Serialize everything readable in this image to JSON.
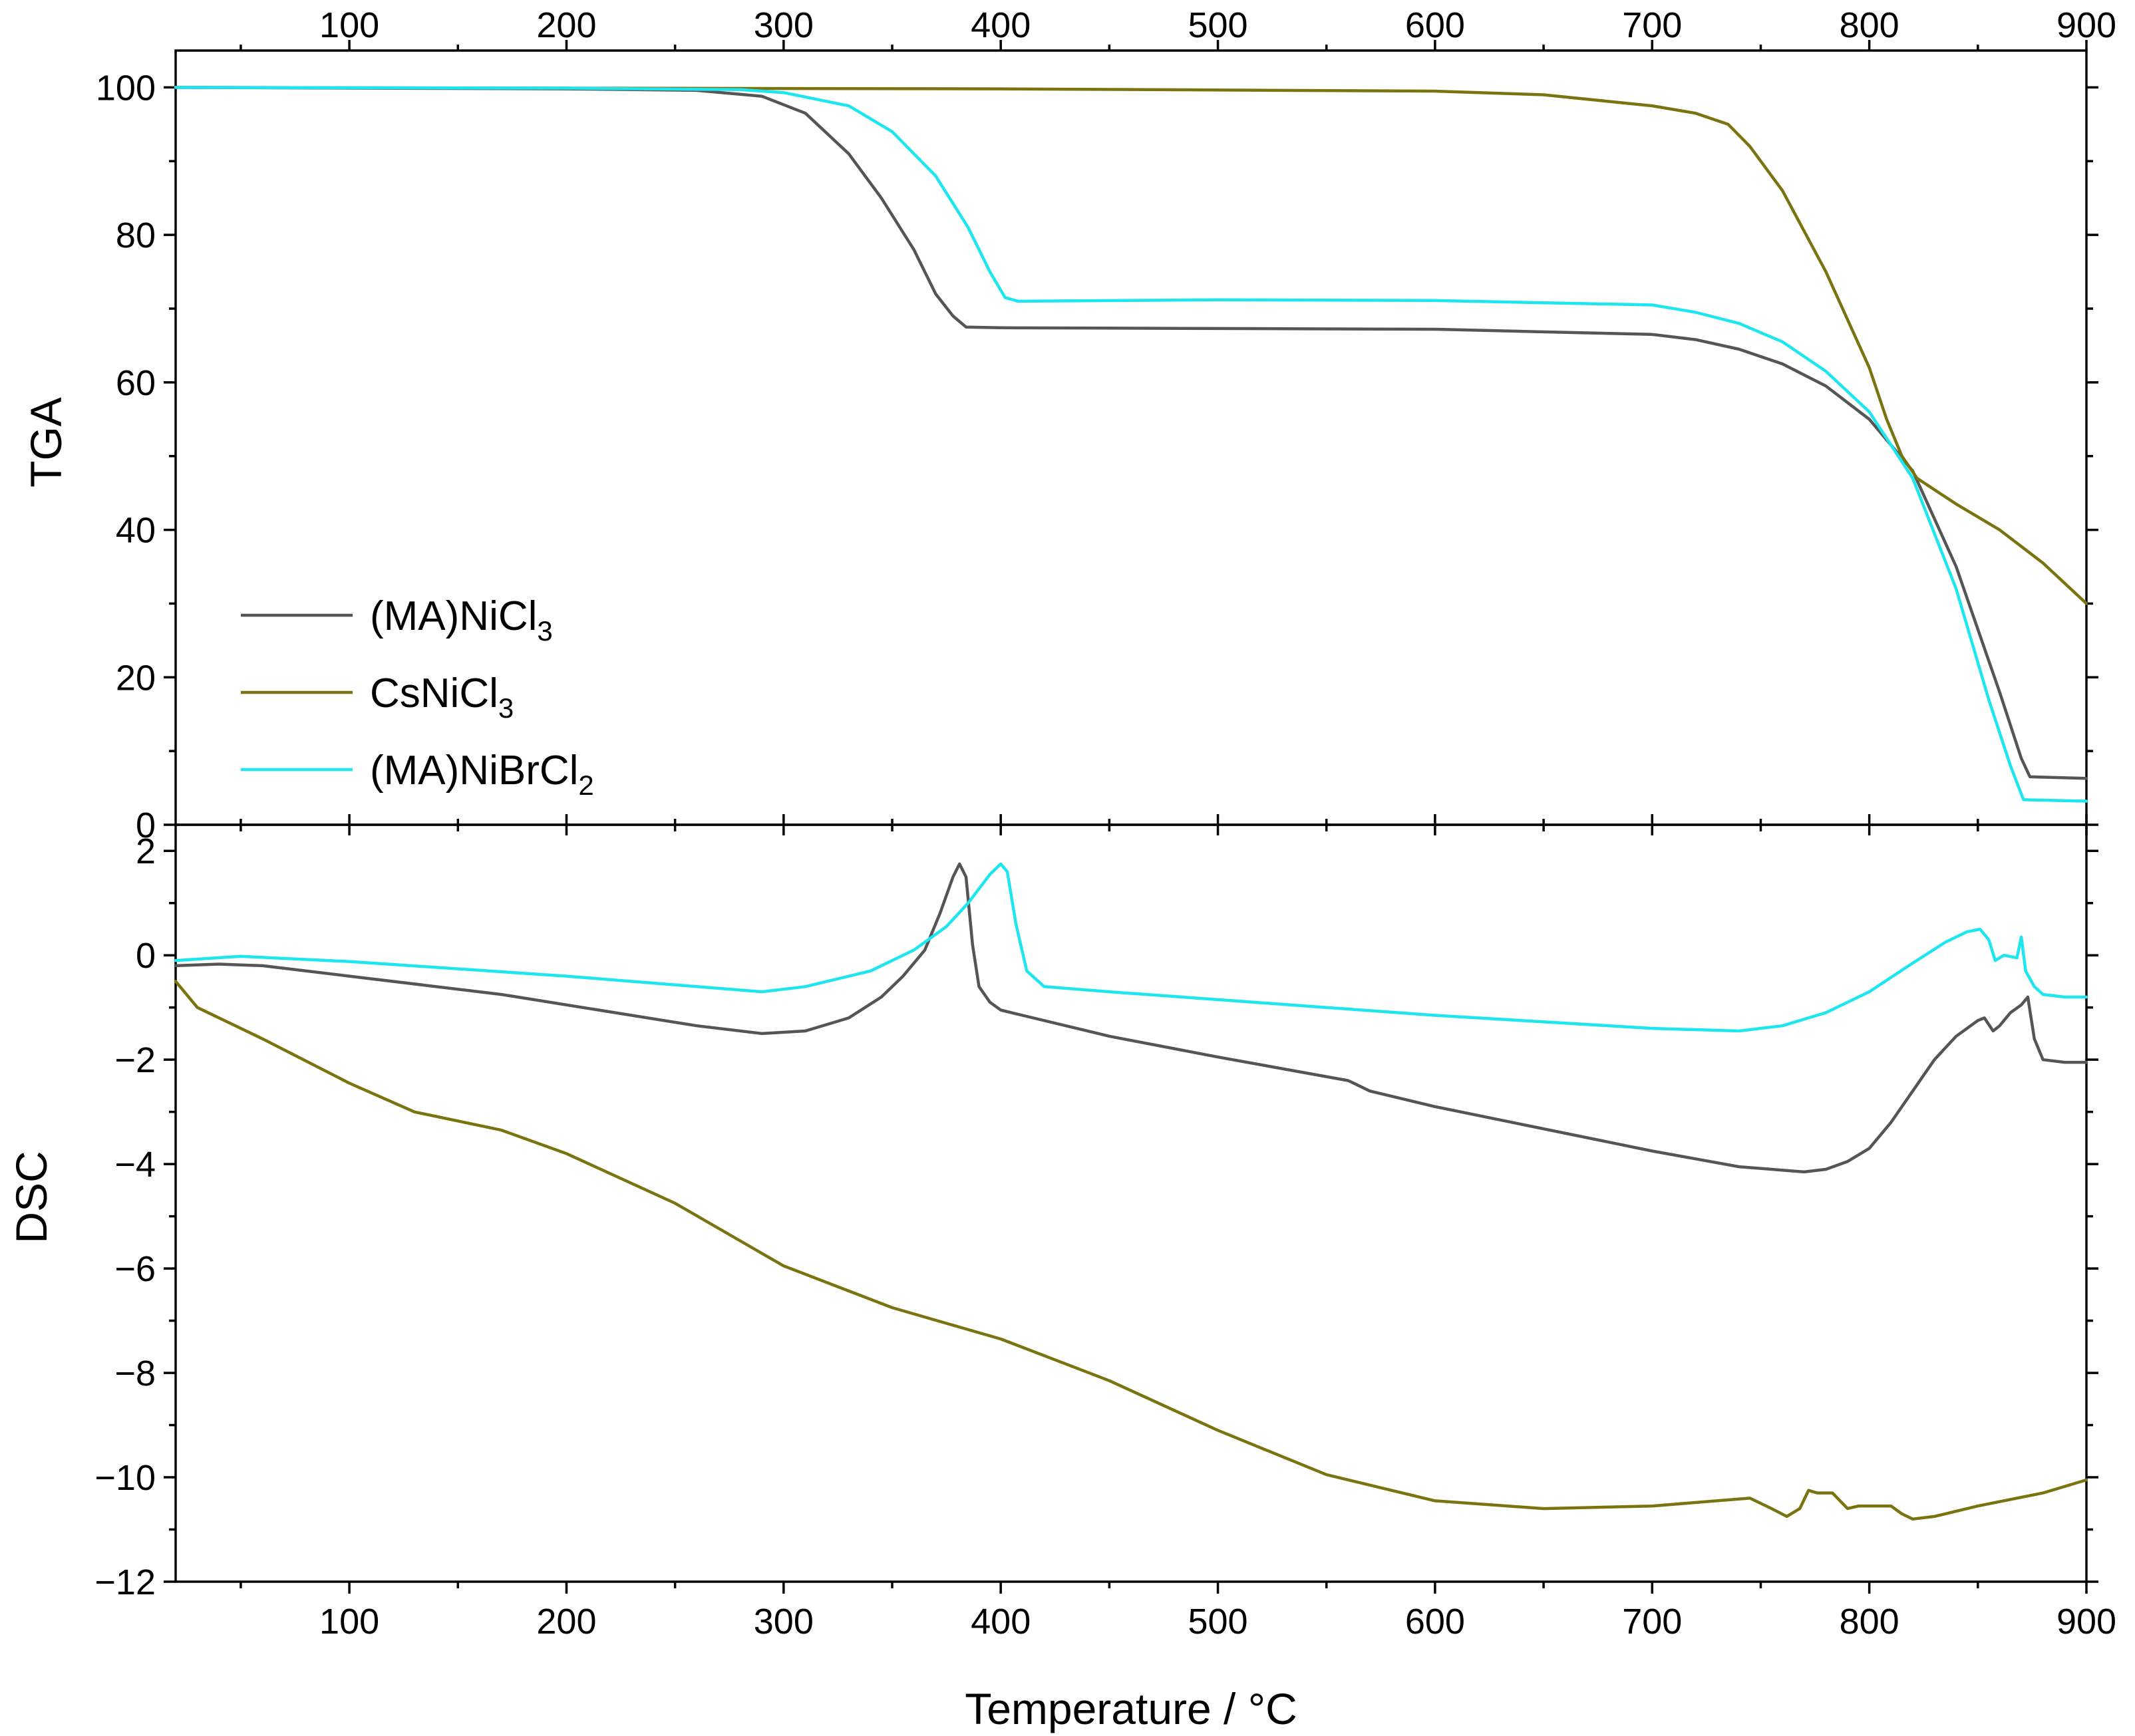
{
  "colors": {
    "ma_nicl3": "#555555",
    "csnicl3": "#7a7410",
    "ma_nibrcl2": "#1ee6f0"
  },
  "chart_data": [
    {
      "panel": "TGA",
      "type": "line",
      "ylabel": "TGA",
      "xlabel": "Temperature / °C",
      "xlim": [
        20,
        900
      ],
      "ylim": [
        0,
        105
      ],
      "x_ticks": [
        "100",
        "200",
        "300",
        "400",
        "500",
        "600",
        "700",
        "800",
        "900"
      ],
      "y_ticks": [
        "0",
        "20",
        "40",
        "60",
        "80",
        "100"
      ],
      "legend": {
        "position": "bottom-left",
        "entries": [
          {
            "base": "(MA)NiCl",
            "sub": "3",
            "color_key": "ma_nicl3"
          },
          {
            "base": "CsNiCl",
            "sub": "3",
            "color_key": "csnicl3"
          },
          {
            "base": "(MA)NiBrCl",
            "sub": "2",
            "color_key": "ma_nibrcl2"
          }
        ]
      },
      "series": [
        {
          "name": "(MA)NiCl3",
          "color_key": "ma_nicl3",
          "x": [
            20,
            100,
            200,
            260,
            290,
            310,
            330,
            345,
            360,
            370,
            378,
            384,
            400,
            500,
            600,
            700,
            720,
            740,
            760,
            780,
            800,
            820,
            840,
            860,
            870,
            874,
            900
          ],
          "y": [
            100,
            99.9,
            99.8,
            99.6,
            98.8,
            96.5,
            91,
            85,
            78,
            72,
            69,
            67.5,
            67.4,
            67.3,
            67.2,
            66.5,
            65.8,
            64.5,
            62.5,
            59.5,
            55,
            48,
            35,
            18,
            9,
            6.5,
            6.3
          ]
        },
        {
          "name": "CsNiCl3",
          "color_key": "csnicl3",
          "x": [
            20,
            200,
            400,
            600,
            650,
            700,
            720,
            735,
            745,
            760,
            780,
            800,
            808,
            815,
            822,
            840,
            860,
            880,
            900
          ],
          "y": [
            100,
            99.9,
            99.8,
            99.5,
            99,
            97.5,
            96.5,
            95,
            92,
            86,
            75,
            62,
            55,
            50,
            47,
            43.5,
            40,
            35.5,
            30
          ]
        },
        {
          "name": "(MA)NiBrCl2",
          "color_key": "ma_nibrcl2",
          "x": [
            20,
            200,
            280,
            300,
            330,
            350,
            370,
            385,
            395,
            402,
            408,
            500,
            600,
            700,
            720,
            740,
            760,
            780,
            800,
            820,
            840,
            855,
            865,
            871,
            900
          ],
          "y": [
            100,
            99.9,
            99.7,
            99.3,
            97.5,
            94,
            88,
            81,
            75,
            71.5,
            71,
            71.2,
            71.1,
            70.5,
            69.5,
            68,
            65.5,
            61.5,
            56,
            47,
            32,
            17,
            8,
            3.4,
            3.2
          ]
        }
      ]
    },
    {
      "panel": "DSC",
      "type": "line",
      "ylabel": "DSC",
      "xlabel": "Temperature / °C",
      "xlim": [
        20,
        900
      ],
      "ylim": [
        -12,
        2.5
      ],
      "x_ticks": [
        "100",
        "200",
        "300",
        "400",
        "500",
        "600",
        "700",
        "800",
        "900"
      ],
      "y_ticks": [
        "2",
        "0",
        "−2",
        "−4",
        "−6",
        "−8",
        "−10",
        "−12"
      ],
      "y_tick_values": [
        2,
        0,
        -2,
        -4,
        -6,
        -8,
        -10,
        -12
      ],
      "series": [
        {
          "name": "(MA)NiCl3",
          "color_key": "ma_nicl3",
          "x": [
            20,
            40,
            60,
            100,
            170,
            260,
            290,
            310,
            330,
            345,
            355,
            365,
            372,
            378,
            381,
            384,
            387,
            390,
            395,
            400,
            410,
            450,
            500,
            560,
            570,
            600,
            700,
            740,
            770,
            780,
            790,
            800,
            810,
            820,
            830,
            840,
            850,
            853,
            857,
            860,
            865,
            870,
            873,
            876,
            880,
            890,
            900
          ],
          "y": [
            -0.2,
            -0.17,
            -0.2,
            -0.4,
            -0.75,
            -1.35,
            -1.5,
            -1.45,
            -1.2,
            -0.8,
            -0.4,
            0.1,
            0.8,
            1.5,
            1.75,
            1.5,
            0.2,
            -0.6,
            -0.9,
            -1.05,
            -1.15,
            -1.55,
            -1.95,
            -2.4,
            -2.6,
            -2.9,
            -3.75,
            -4.05,
            -4.15,
            -4.1,
            -3.95,
            -3.7,
            -3.2,
            -2.6,
            -2.0,
            -1.55,
            -1.25,
            -1.2,
            -1.45,
            -1.35,
            -1.1,
            -0.95,
            -0.8,
            -1.6,
            -2.0,
            -2.05,
            -2.05
          ]
        },
        {
          "name": "CsNiCl3",
          "color_key": "csnicl3",
          "x": [
            20,
            30,
            60,
            100,
            130,
            170,
            200,
            250,
            300,
            350,
            400,
            450,
            500,
            550,
            600,
            650,
            700,
            745,
            755,
            762,
            768,
            772,
            776,
            783,
            790,
            795,
            810,
            815,
            820,
            830,
            850,
            880,
            900
          ],
          "y": [
            -0.5,
            -1.0,
            -1.6,
            -2.45,
            -3.0,
            -3.35,
            -3.8,
            -4.75,
            -5.95,
            -6.75,
            -7.35,
            -8.15,
            -9.1,
            -9.95,
            -10.45,
            -10.6,
            -10.55,
            -10.4,
            -10.6,
            -10.75,
            -10.6,
            -10.25,
            -10.3,
            -10.3,
            -10.6,
            -10.55,
            -10.55,
            -10.7,
            -10.8,
            -10.75,
            -10.55,
            -10.3,
            -10.05
          ]
        },
        {
          "name": "(MA)NiBrCl2",
          "color_key": "ma_nibrcl2",
          "x": [
            20,
            50,
            100,
            200,
            290,
            310,
            340,
            360,
            375,
            385,
            395,
            400,
            403,
            407,
            412,
            420,
            450,
            500,
            550,
            600,
            700,
            740,
            760,
            780,
            800,
            820,
            835,
            845,
            851,
            855,
            858,
            862,
            868,
            870,
            872,
            876,
            880,
            890,
            900
          ],
          "y": [
            -0.1,
            -0.02,
            -0.12,
            -0.4,
            -0.7,
            -0.6,
            -0.3,
            0.1,
            0.55,
            1.0,
            1.55,
            1.75,
            1.6,
            0.6,
            -0.3,
            -0.6,
            -0.7,
            -0.85,
            -1.0,
            -1.15,
            -1.4,
            -1.45,
            -1.35,
            -1.1,
            -0.7,
            -0.15,
            0.25,
            0.45,
            0.5,
            0.3,
            -0.1,
            0.0,
            -0.05,
            0.35,
            -0.3,
            -0.6,
            -0.75,
            -0.8,
            -0.8
          ]
        }
      ]
    }
  ]
}
